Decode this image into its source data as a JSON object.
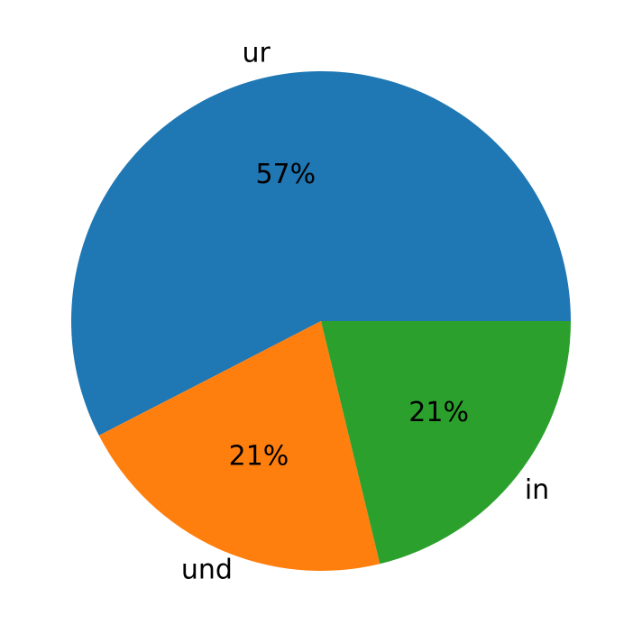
{
  "chart_data": {
    "type": "pie",
    "categories": [
      "ur",
      "und",
      "in"
    ],
    "values": [
      57,
      21,
      21
    ],
    "value_labels": [
      "57%",
      "21%",
      "21%"
    ],
    "colors": [
      "#1f77b4",
      "#ff7f0e",
      "#2ca02c"
    ]
  }
}
